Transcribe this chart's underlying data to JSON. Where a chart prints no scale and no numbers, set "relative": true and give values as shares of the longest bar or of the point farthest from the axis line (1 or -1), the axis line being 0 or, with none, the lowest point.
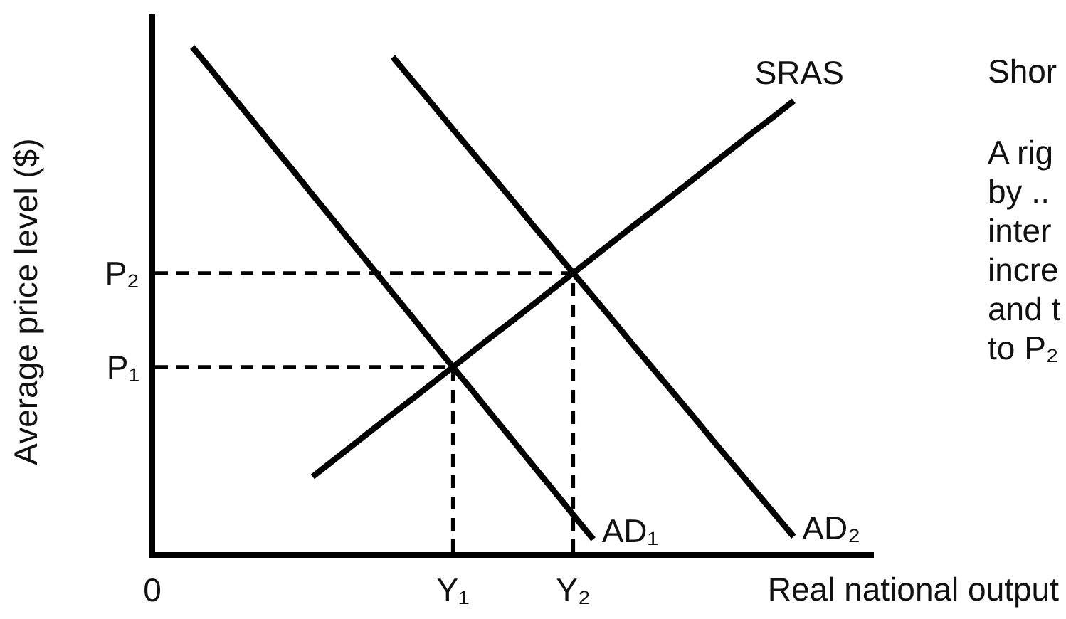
{
  "chart_data": {
    "type": "line",
    "relative": true,
    "xlabel": "Real national output",
    "ylabel": "Average price level ($)",
    "categories": [
      "0",
      null,
      null,
      null,
      null,
      null,
      null,
      null,
      null,
      null,
      null,
      null,
      null,
      null,
      null,
      "Y₁",
      null,
      null,
      null,
      null,
      null,
      "Y₂",
      null,
      null,
      null,
      null,
      null,
      null,
      null,
      null,
      null,
      null,
      null,
      null,
      null,
      null,
      null
    ],
    "series": [
      {
        "name": "AD₁",
        "color": "#000000",
        "values": [
          null,
          null,
          1.0,
          0.952,
          0.903,
          0.855,
          0.806,
          0.758,
          0.709,
          0.661,
          0.612,
          0.564,
          0.515,
          0.467,
          0.418,
          0.37,
          0.322,
          0.273,
          0.225,
          0.176,
          0.128,
          0.079,
          0.031,
          null,
          null,
          null,
          null,
          null,
          null,
          null,
          null,
          null,
          null,
          null,
          null,
          null,
          null
        ]
      },
      {
        "name": "AD₂",
        "color": "#000000",
        "values": [
          null,
          null,
          null,
          null,
          null,
          null,
          null,
          null,
          null,
          null,
          null,
          null,
          0.98,
          0.933,
          0.886,
          0.838,
          0.791,
          0.744,
          0.697,
          0.649,
          0.602,
          0.555,
          0.508,
          0.461,
          0.413,
          0.366,
          0.319,
          0.272,
          0.224,
          0.177,
          0.13,
          0.083,
          0.036,
          null,
          null,
          null,
          null
        ]
      },
      {
        "name": "SRAS",
        "color": "#000000",
        "values": [
          null,
          null,
          null,
          null,
          null,
          null,
          null,
          null,
          0.154,
          0.185,
          0.216,
          0.247,
          0.278,
          0.308,
          0.339,
          0.37,
          0.401,
          0.432,
          0.462,
          0.493,
          0.524,
          0.555,
          0.586,
          0.617,
          0.648,
          0.678,
          0.709,
          0.74,
          0.771,
          0.802,
          0.833,
          0.863,
          0.894,
          null,
          null,
          null,
          null
        ]
      }
    ],
    "ref_lines": [
      {
        "axis": "y",
        "value": 0.37,
        "label": "P₁",
        "color": "#000000",
        "line_style": "dashed"
      },
      {
        "axis": "y",
        "value": 0.555,
        "label": "P₂",
        "color": "#000000",
        "line_style": "dashed"
      },
      {
        "axis": "x",
        "value": "Y₁",
        "color": "#000000",
        "line_style": "dashed"
      },
      {
        "axis": "x",
        "value": "Y₂",
        "color": "#000000",
        "line_style": "dashed"
      }
    ],
    "annotations": [
      "Shor",
      "A rig",
      "by ..",
      "inter",
      "incre",
      "and t",
      "to P₂"
    ]
  }
}
